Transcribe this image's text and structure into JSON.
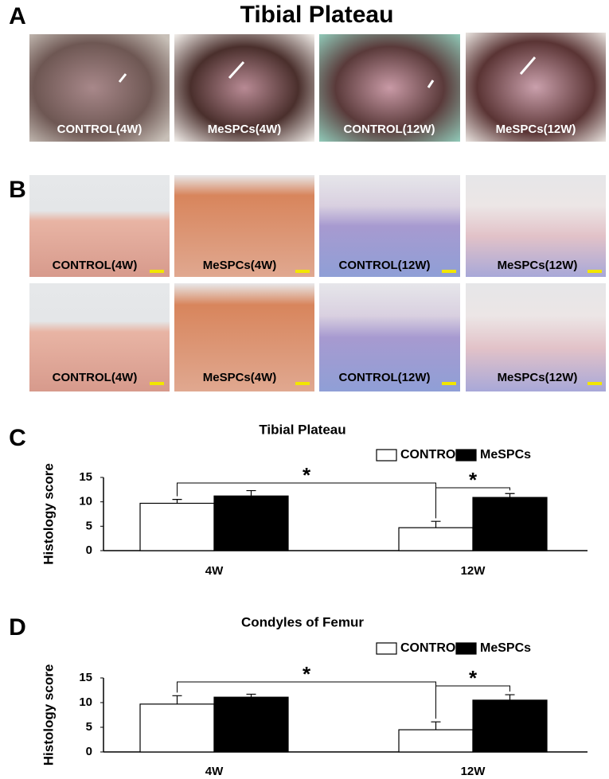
{
  "panel_a": {
    "letter": "A",
    "title": "Tibial Plateau",
    "photos": [
      "CONTROL(4W)",
      "MeSPCs(4W)",
      "CONTROL(12W)",
      "MeSPCs(12W)"
    ]
  },
  "panel_b": {
    "letter": "B",
    "rows": [
      [
        "CONTROL(4W)",
        "MeSPCs(4W)",
        "CONTROL(12W)",
        "MeSPCs(12W)"
      ],
      [
        "CONTROL(4W)",
        "MeSPCs(4W)",
        "CONTROL(12W)",
        "MeSPCs(12W)"
      ]
    ]
  },
  "chart_data": [
    {
      "type": "bar",
      "panel": "C",
      "title": "Tibial Plateau",
      "ylabel": "Histology score",
      "categories": [
        "4W",
        "12W"
      ],
      "series": [
        {
          "name": "CONTROL",
          "color": "#ffffff",
          "values": [
            9.7,
            4.7
          ],
          "errors": [
            0.8,
            1.3
          ]
        },
        {
          "name": "MeSPCs",
          "color": "#000000",
          "values": [
            11.2,
            10.9
          ],
          "errors": [
            1.1,
            0.8
          ]
        }
      ],
      "ylim": [
        0,
        15
      ],
      "yticks": [
        0,
        5,
        10,
        15
      ],
      "legend": "upper right",
      "annotations": [
        "*",
        "*"
      ]
    },
    {
      "type": "bar",
      "panel": "D",
      "title": "Condyles of Femur",
      "ylabel": "Histology score",
      "categories": [
        "4W",
        "12W"
      ],
      "series": [
        {
          "name": "CONTROL",
          "color": "#ffffff",
          "values": [
            9.7,
            4.5
          ],
          "errors": [
            1.7,
            1.6
          ]
        },
        {
          "name": "MeSPCs",
          "color": "#000000",
          "values": [
            11.1,
            10.5
          ],
          "errors": [
            0.6,
            1.1
          ]
        }
      ],
      "ylim": [
        0,
        15
      ],
      "yticks": [
        0,
        5,
        10,
        15
      ],
      "legend": "upper right",
      "annotations": [
        "*",
        "*"
      ]
    }
  ]
}
